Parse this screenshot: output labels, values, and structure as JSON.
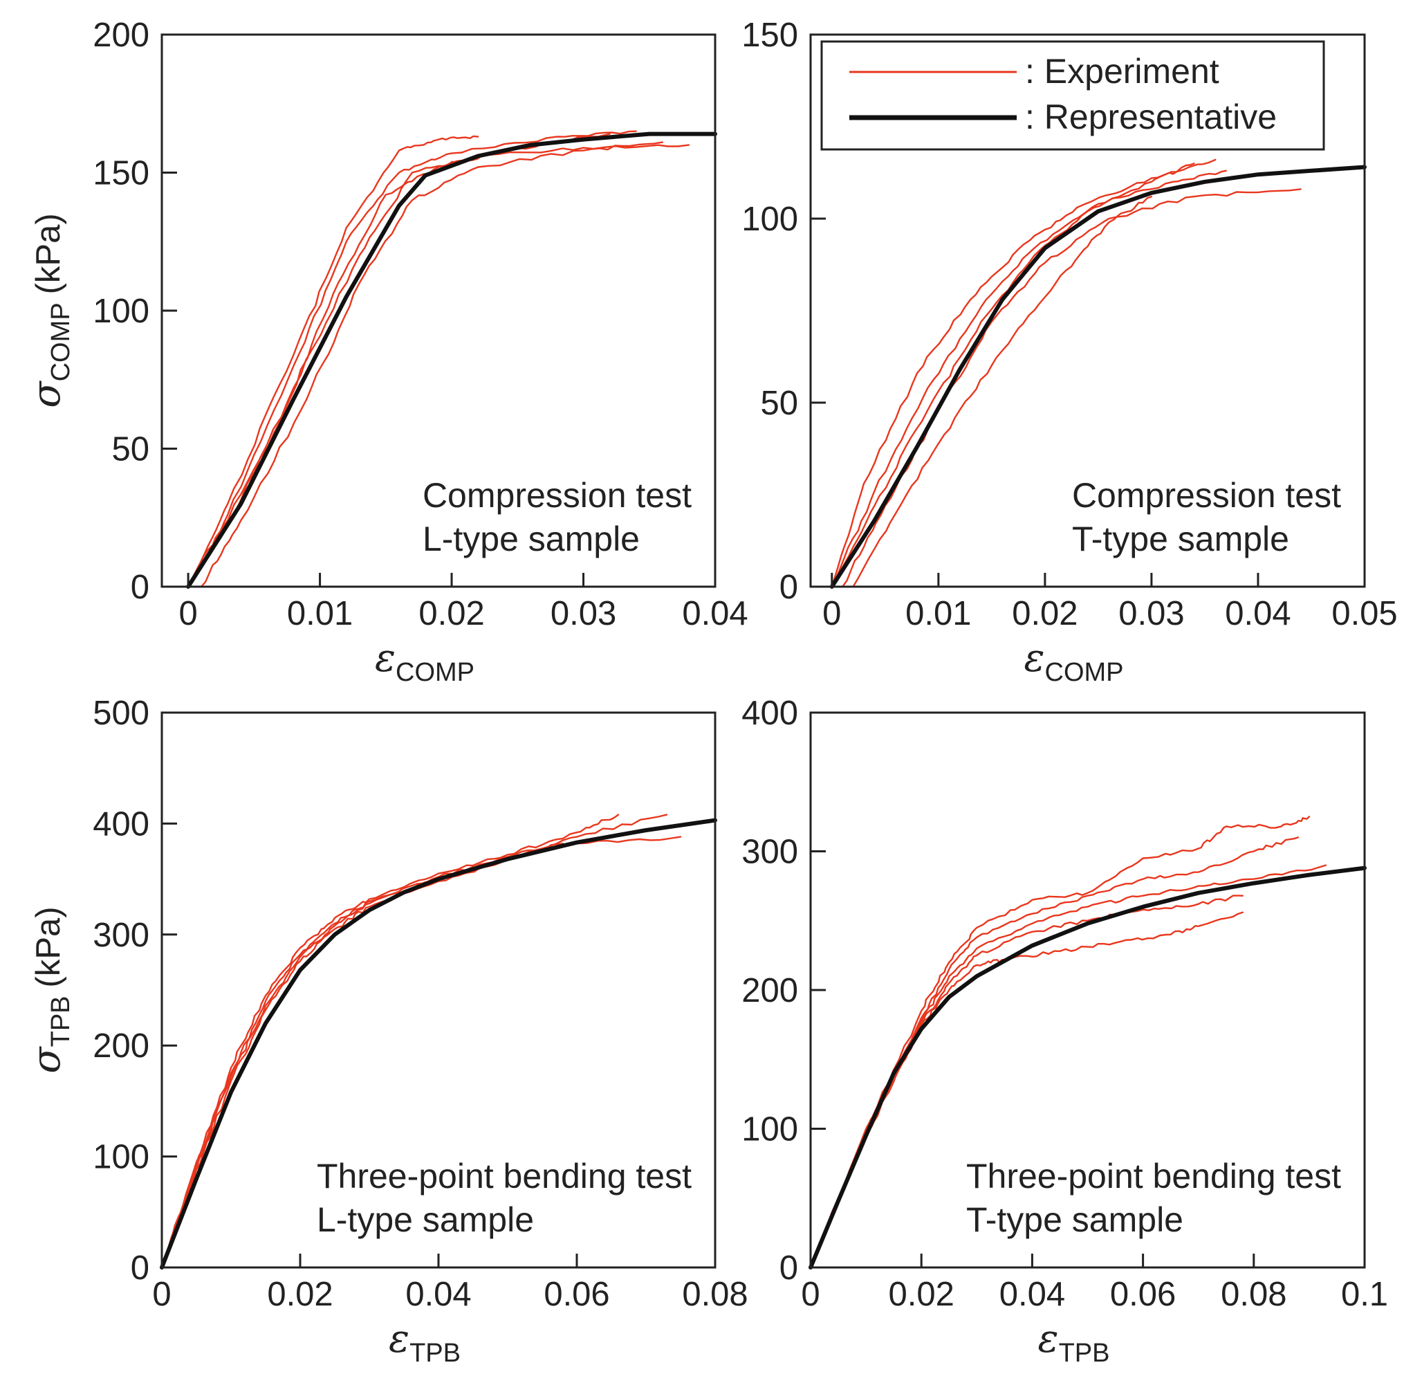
{
  "colors": {
    "experiment": "#e8371e",
    "representative": "#111111",
    "axis": "#222222"
  },
  "legend": {
    "experiment": ": Experiment",
    "representative": ": Representative"
  },
  "chart_data": [
    {
      "id": "comp_l",
      "type": "line",
      "annotation": [
        "Compression test",
        "L-type sample"
      ],
      "xlabel": {
        "symbol": "ε",
        "sub": "COMP"
      },
      "ylabel": {
        "symbol": "σ",
        "sub": "COMP",
        "unit": "(kPa)"
      },
      "xlim": [
        -0.002,
        0.04
      ],
      "ylim": [
        0,
        200
      ],
      "xticks": [
        0,
        0.01,
        0.02,
        0.03,
        0.04
      ],
      "xticklabels": [
        "0",
        "0.01",
        "0.02",
        "0.03",
        "0.04"
      ],
      "yticks": [
        0,
        50,
        100,
        150,
        200
      ],
      "yticklabels": [
        "0",
        "50",
        "100",
        "150",
        "200"
      ],
      "series": [
        {
          "name": "Experiment 1",
          "kind": "experiment",
          "x": [
            0,
            0.003,
            0.008,
            0.013,
            0.017,
            0.022,
            0.03,
            0.038
          ],
          "y": [
            0,
            22,
            72,
            120,
            150,
            156,
            159,
            160
          ]
        },
        {
          "name": "Experiment 2",
          "kind": "experiment",
          "x": [
            0,
            0.003,
            0.008,
            0.012,
            0.016,
            0.02,
            0.028,
            0.034
          ],
          "y": [
            0,
            26,
            80,
            125,
            150,
            157,
            163,
            165
          ]
        },
        {
          "name": "Experiment 3",
          "kind": "experiment",
          "x": [
            0,
            0.003,
            0.008,
            0.012,
            0.016,
            0.019,
            0.022
          ],
          "y": [
            0,
            30,
            84,
            130,
            158,
            162,
            163
          ]
        },
        {
          "name": "Experiment 4",
          "kind": "experiment",
          "x": [
            0.001,
            0.004,
            0.009,
            0.013,
            0.017,
            0.022,
            0.03,
            0.036
          ],
          "y": [
            0,
            24,
            68,
            110,
            140,
            152,
            158,
            161
          ]
        },
        {
          "name": "Experiment 5",
          "kind": "experiment",
          "x": [
            0,
            0.002,
            0.007,
            0.011,
            0.015,
            0.019,
            0.024,
            0.032
          ],
          "y": [
            0,
            16,
            60,
            106,
            142,
            152,
            158,
            164
          ]
        },
        {
          "name": "Representative",
          "kind": "representative",
          "x": [
            0,
            0.004,
            0.008,
            0.012,
            0.016,
            0.018,
            0.022,
            0.026,
            0.03,
            0.035,
            0.04
          ],
          "y": [
            0,
            30,
            68,
            105,
            138,
            149,
            156,
            160,
            162,
            164,
            164
          ]
        }
      ]
    },
    {
      "id": "comp_t",
      "type": "line",
      "annotation": [
        "Compression test",
        "T-type sample"
      ],
      "xlabel": {
        "symbol": "ε",
        "sub": "COMP"
      },
      "ylabel": null,
      "xlim": [
        -0.002,
        0.05
      ],
      "ylim": [
        0,
        150
      ],
      "xticks": [
        0,
        0.01,
        0.02,
        0.03,
        0.04,
        0.05
      ],
      "xticklabels": [
        "0",
        "0.01",
        "0.02",
        "0.03",
        "0.04",
        "0.05"
      ],
      "yticks": [
        0,
        50,
        100,
        150
      ],
      "yticklabels": [
        "0",
        "50",
        "100",
        "150"
      ],
      "series": [
        {
          "name": "Experiment 1",
          "kind": "experiment",
          "x": [
            0,
            0.003,
            0.008,
            0.013,
            0.018,
            0.023,
            0.03,
            0.036
          ],
          "y": [
            0,
            28,
            58,
            78,
            93,
            103,
            111,
            116
          ]
        },
        {
          "name": "Experiment 2",
          "kind": "experiment",
          "x": [
            0,
            0.004,
            0.009,
            0.014,
            0.019,
            0.025,
            0.032,
            0.037
          ],
          "y": [
            0,
            26,
            54,
            76,
            92,
            104,
            110,
            113
          ]
        },
        {
          "name": "Experiment 3",
          "kind": "experiment",
          "x": [
            0,
            0.004,
            0.009,
            0.014,
            0.019,
            0.024,
            0.03,
            0.034
          ],
          "y": [
            0,
            22,
            48,
            72,
            90,
            102,
            110,
            115
          ]
        },
        {
          "name": "Experiment 4",
          "kind": "experiment",
          "x": [
            0.001,
            0.005,
            0.01,
            0.015,
            0.02,
            0.026,
            0.034,
            0.044
          ],
          "y": [
            0,
            22,
            48,
            72,
            88,
            100,
            106,
            108
          ]
        },
        {
          "name": "Experiment 5",
          "kind": "experiment",
          "x": [
            0.002,
            0.007,
            0.012,
            0.017,
            0.022,
            0.026,
            0.03
          ],
          "y": [
            0,
            25,
            48,
            68,
            86,
            99,
            106
          ]
        },
        {
          "name": "Representative",
          "kind": "representative",
          "x": [
            0,
            0.004,
            0.008,
            0.012,
            0.016,
            0.02,
            0.025,
            0.03,
            0.035,
            0.04,
            0.045,
            0.05
          ],
          "y": [
            0,
            18,
            38,
            59,
            78,
            92,
            102,
            107,
            110,
            112,
            113,
            114
          ]
        }
      ]
    },
    {
      "id": "tpb_l",
      "type": "line",
      "annotation": [
        "Three-point bending test",
        "L-type sample"
      ],
      "xlabel": {
        "symbol": "ε",
        "sub": "TPB"
      },
      "ylabel": {
        "symbol": "σ",
        "sub": "TPB",
        "unit": "(kPa)"
      },
      "xlim": [
        0,
        0.08
      ],
      "ylim": [
        0,
        500
      ],
      "xticks": [
        0,
        0.02,
        0.04,
        0.06,
        0.08
      ],
      "xticklabels": [
        "0",
        "0.02",
        "0.04",
        "0.06",
        "0.08"
      ],
      "yticks": [
        0,
        100,
        200,
        300,
        400,
        500
      ],
      "yticklabels": [
        "0",
        "100",
        "200",
        "300",
        "400",
        "500"
      ],
      "series": [
        {
          "name": "Experiment 1",
          "kind": "experiment",
          "x": [
            0,
            0.005,
            0.01,
            0.015,
            0.02,
            0.025,
            0.03,
            0.04,
            0.05,
            0.06,
            0.066
          ],
          "y": [
            0,
            95,
            180,
            245,
            288,
            315,
            332,
            355,
            372,
            392,
            408
          ]
        },
        {
          "name": "Experiment 2",
          "kind": "experiment",
          "x": [
            0,
            0.005,
            0.01,
            0.015,
            0.02,
            0.025,
            0.03,
            0.04,
            0.05,
            0.06,
            0.073
          ],
          "y": [
            0,
            92,
            175,
            240,
            282,
            310,
            330,
            352,
            370,
            388,
            408
          ]
        },
        {
          "name": "Experiment 3",
          "kind": "experiment",
          "x": [
            0,
            0.005,
            0.01,
            0.015,
            0.02,
            0.025,
            0.03,
            0.04,
            0.05,
            0.06,
            0.075
          ],
          "y": [
            0,
            90,
            172,
            236,
            280,
            308,
            328,
            350,
            370,
            382,
            388
          ]
        },
        {
          "name": "Experiment 4",
          "kind": "experiment",
          "x": [
            0,
            0.005,
            0.01,
            0.015,
            0.02,
            0.025,
            0.03,
            0.04,
            0.05,
            0.058
          ],
          "y": [
            0,
            88,
            168,
            232,
            276,
            305,
            325,
            348,
            368,
            382
          ]
        },
        {
          "name": "Representative",
          "kind": "representative",
          "x": [
            0,
            0.005,
            0.01,
            0.015,
            0.02,
            0.025,
            0.03,
            0.035,
            0.04,
            0.05,
            0.06,
            0.07,
            0.08
          ],
          "y": [
            0,
            80,
            158,
            220,
            268,
            300,
            322,
            338,
            350,
            368,
            383,
            394,
            403
          ]
        }
      ]
    },
    {
      "id": "tpb_t",
      "type": "line",
      "annotation": [
        "Three-point bending test",
        "T-type sample"
      ],
      "xlabel": {
        "symbol": "ε",
        "sub": "TPB"
      },
      "ylabel": null,
      "xlim": [
        0,
        0.1
      ],
      "ylim": [
        0,
        400
      ],
      "xticks": [
        0,
        0.02,
        0.04,
        0.06,
        0.08,
        0.1
      ],
      "xticklabels": [
        "0",
        "0.02",
        "0.04",
        "0.06",
        "0.08",
        "0.1"
      ],
      "yticks": [
        0,
        100,
        200,
        300,
        400
      ],
      "yticklabels": [
        "0",
        "100",
        "200",
        "300",
        "400"
      ],
      "series": [
        {
          "name": "Experiment 1",
          "kind": "experiment",
          "x": [
            0,
            0.01,
            0.02,
            0.025,
            0.03,
            0.04,
            0.05,
            0.06,
            0.07,
            0.075,
            0.085,
            0.09
          ],
          "y": [
            0,
            100,
            185,
            220,
            245,
            265,
            270,
            295,
            302,
            318,
            318,
            325
          ]
        },
        {
          "name": "Experiment 2",
          "kind": "experiment",
          "x": [
            0,
            0.01,
            0.02,
            0.025,
            0.03,
            0.04,
            0.05,
            0.06,
            0.07,
            0.08,
            0.088
          ],
          "y": [
            0,
            98,
            180,
            215,
            238,
            255,
            268,
            280,
            285,
            300,
            310
          ]
        },
        {
          "name": "Experiment 3",
          "kind": "experiment",
          "x": [
            0,
            0.01,
            0.02,
            0.025,
            0.03,
            0.04,
            0.05,
            0.06,
            0.07,
            0.08,
            0.093
          ],
          "y": [
            0,
            96,
            178,
            210,
            230,
            248,
            260,
            268,
            275,
            280,
            290
          ]
        },
        {
          "name": "Experiment 4",
          "kind": "experiment",
          "x": [
            0,
            0.01,
            0.02,
            0.025,
            0.03,
            0.04,
            0.05,
            0.06,
            0.07,
            0.078
          ],
          "y": [
            0,
            95,
            176,
            205,
            225,
            242,
            250,
            258,
            262,
            268
          ]
        },
        {
          "name": "Experiment 5",
          "kind": "experiment",
          "x": [
            0,
            0.01,
            0.02,
            0.025,
            0.03,
            0.035,
            0.045,
            0.055,
            0.065,
            0.07,
            0.078
          ],
          "y": [
            0,
            94,
            175,
            200,
            218,
            222,
            228,
            234,
            240,
            246,
            256
          ]
        },
        {
          "name": "Representative",
          "kind": "representative",
          "x": [
            0,
            0.005,
            0.01,
            0.015,
            0.02,
            0.025,
            0.03,
            0.04,
            0.05,
            0.06,
            0.07,
            0.08,
            0.09,
            0.1
          ],
          "y": [
            0,
            48,
            95,
            140,
            172,
            195,
            210,
            232,
            248,
            260,
            270,
            277,
            283,
            288
          ]
        }
      ]
    }
  ]
}
